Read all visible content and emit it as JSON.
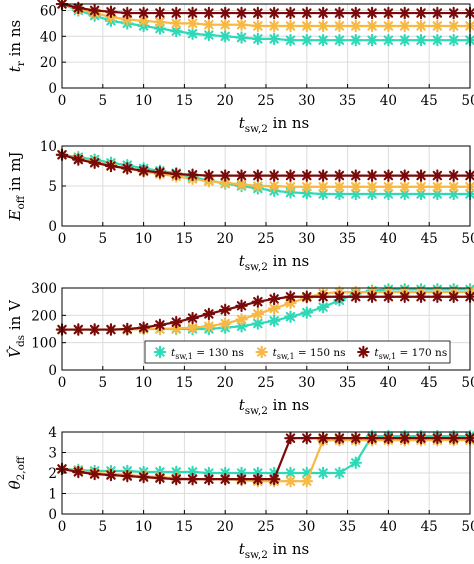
{
  "series_legend": [
    {
      "name": "t_sw,1 = 130 ns",
      "sym": "t",
      "sub": "sw,1",
      "rest": " = 130 ns",
      "color": "#2ed9b8"
    },
    {
      "name": "t_sw,1 = 150 ns",
      "sym": "t",
      "sub": "sw,1",
      "rest": " = 150 ns",
      "color": "#f7b844"
    },
    {
      "name": "t_sw,1 = 170 ns",
      "sym": "t",
      "sub": "sw,1",
      "rest": " = 170 ns",
      "color": "#7a0a0a"
    }
  ],
  "chart_data": [
    {
      "type": "line",
      "ylabel": {
        "main": "t",
        "sub": "r",
        "rest": " in ns"
      },
      "xlabel": {
        "main": "t",
        "sub": "sw,2",
        "rest": " in ns"
      },
      "xlim": [
        0,
        50
      ],
      "ylim": [
        0,
        65
      ],
      "xticks": [
        0,
        5,
        10,
        15,
        20,
        25,
        30,
        35,
        40,
        45,
        50
      ],
      "yticks": [
        0,
        20,
        40,
        60
      ],
      "grid": true,
      "x": [
        0,
        2,
        4,
        6,
        8,
        10,
        12,
        14,
        16,
        18,
        20,
        22,
        24,
        26,
        28,
        30,
        32,
        34,
        36,
        38,
        40,
        42,
        44,
        46,
        48,
        50
      ],
      "series": [
        {
          "name": "t_sw,1 = 130 ns",
          "values": [
            65,
            60,
            56,
            52,
            50,
            48,
            46,
            44,
            42,
            41,
            40,
            39,
            38,
            38,
            37,
            37,
            37,
            37,
            37,
            37,
            37,
            37,
            37,
            37,
            37,
            37
          ]
        },
        {
          "name": "t_sw,1 = 150 ns",
          "values": [
            65,
            61,
            58,
            55,
            53,
            52,
            51,
            50,
            50,
            49,
            49,
            49,
            48,
            48,
            48,
            48,
            48,
            48,
            48,
            48,
            48,
            48,
            48,
            48,
            48,
            48
          ]
        },
        {
          "name": "t_sw,1 = 170 ns",
          "values": [
            65,
            62,
            60,
            59,
            58,
            58,
            58,
            58,
            58,
            58,
            58,
            58,
            58,
            58,
            58,
            58,
            58,
            58,
            58,
            58,
            58,
            58,
            58,
            58,
            58,
            58
          ]
        }
      ]
    },
    {
      "type": "line",
      "ylabel": {
        "main": "E",
        "sub": "off",
        "rest": " in mJ"
      },
      "xlabel": {
        "main": "t",
        "sub": "sw,2",
        "rest": " in ns"
      },
      "xlim": [
        0,
        50
      ],
      "ylim": [
        0,
        10
      ],
      "xticks": [
        0,
        5,
        10,
        15,
        20,
        25,
        30,
        35,
        40,
        45,
        50
      ],
      "yticks": [
        0,
        5,
        10
      ],
      "grid": true,
      "x": [
        0,
        2,
        4,
        6,
        8,
        10,
        12,
        14,
        16,
        18,
        20,
        22,
        24,
        26,
        28,
        30,
        32,
        34,
        36,
        38,
        40,
        42,
        44,
        46,
        48,
        50
      ],
      "series": [
        {
          "name": "t_sw,1 = 130 ns",
          "values": [
            8.9,
            8.6,
            8.3,
            7.9,
            7.6,
            7.2,
            6.9,
            6.6,
            6.1,
            5.7,
            5.3,
            5.0,
            4.7,
            4.4,
            4.2,
            4.1,
            4.0,
            4.0,
            4.0,
            4.0,
            4.0,
            4.0,
            4.0,
            4.0,
            4.0,
            4.0
          ]
        },
        {
          "name": "t_sw,1 = 150 ns",
          "values": [
            8.9,
            8.4,
            8.0,
            7.6,
            7.2,
            6.8,
            6.5,
            6.2,
            5.9,
            5.6,
            5.4,
            5.2,
            5.0,
            5.0,
            4.9,
            4.9,
            4.9,
            4.9,
            4.9,
            4.9,
            4.9,
            4.9,
            4.9,
            4.9,
            4.9,
            4.9
          ]
        },
        {
          "name": "t_sw,1 = 170 ns",
          "values": [
            8.9,
            8.3,
            7.9,
            7.5,
            7.2,
            6.9,
            6.7,
            6.5,
            6.4,
            6.3,
            6.3,
            6.3,
            6.3,
            6.3,
            6.3,
            6.3,
            6.3,
            6.3,
            6.3,
            6.3,
            6.3,
            6.3,
            6.3,
            6.3,
            6.3,
            6.3
          ]
        }
      ]
    },
    {
      "type": "line",
      "ylabel": {
        "main": "V̂",
        "sub": "ds",
        "rest": " in V"
      },
      "xlabel": {
        "main": "t",
        "sub": "sw,2",
        "rest": " in ns"
      },
      "xlim": [
        0,
        50
      ],
      "ylim": [
        0,
        300
      ],
      "xticks": [
        0,
        5,
        10,
        15,
        20,
        25,
        30,
        35,
        40,
        45,
        50
      ],
      "yticks": [
        0,
        100,
        200,
        300
      ],
      "grid": true,
      "legend": "bottom-center",
      "x": [
        0,
        2,
        4,
        6,
        8,
        10,
        12,
        14,
        16,
        18,
        20,
        22,
        24,
        26,
        28,
        30,
        32,
        34,
        36,
        38,
        40,
        42,
        44,
        46,
        48,
        50
      ],
      "series": [
        {
          "name": "t_sw,1 = 130 ns",
          "values": [
            148,
            148,
            148,
            148,
            148,
            150,
            150,
            150,
            150,
            150,
            155,
            160,
            170,
            180,
            195,
            210,
            230,
            255,
            280,
            290,
            295,
            295,
            295,
            295,
            295,
            295
          ]
        },
        {
          "name": "t_sw,1 = 150 ns",
          "values": [
            148,
            148,
            148,
            148,
            148,
            150,
            150,
            152,
            155,
            160,
            170,
            185,
            205,
            225,
            245,
            265,
            280,
            285,
            285,
            285,
            285,
            285,
            285,
            285,
            285,
            285
          ]
        },
        {
          "name": "t_sw,1 = 170 ns",
          "values": [
            148,
            148,
            148,
            148,
            150,
            155,
            165,
            175,
            190,
            205,
            220,
            235,
            250,
            260,
            268,
            268,
            268,
            268,
            268,
            268,
            268,
            268,
            268,
            268,
            268,
            268
          ]
        }
      ]
    },
    {
      "type": "line",
      "ylabel": {
        "main": "θ",
        "sub": "2,off",
        "rest": ""
      },
      "xlabel": {
        "main": "t",
        "sub": "sw,2",
        "rest": " in ns"
      },
      "xlim": [
        0,
        50
      ],
      "ylim": [
        0,
        4
      ],
      "xticks": [
        0,
        5,
        10,
        15,
        20,
        25,
        30,
        35,
        40,
        45,
        50
      ],
      "yticks": [
        0,
        1,
        2,
        3,
        4
      ],
      "grid": true,
      "x": [
        0,
        2,
        4,
        6,
        8,
        10,
        12,
        14,
        16,
        18,
        20,
        22,
        24,
        26,
        28,
        30,
        32,
        34,
        36,
        38,
        40,
        42,
        44,
        46,
        48,
        50
      ],
      "series": [
        {
          "name": "t_sw,1 = 130 ns",
          "values": [
            2.2,
            2.15,
            2.1,
            2.1,
            2.1,
            2.05,
            2.05,
            2.05,
            2.05,
            2.0,
            2.0,
            2.0,
            2.0,
            2.0,
            2.0,
            2.0,
            2.0,
            2.0,
            2.5,
            3.8,
            3.8,
            3.8,
            3.8,
            3.8,
            3.8,
            3.8
          ]
        },
        {
          "name": "t_sw,1 = 150 ns",
          "values": [
            2.2,
            2.1,
            2.0,
            1.95,
            1.9,
            1.85,
            1.8,
            1.75,
            1.7,
            1.7,
            1.7,
            1.65,
            1.6,
            1.6,
            1.6,
            1.6,
            3.6,
            3.6,
            3.6,
            3.6,
            3.6,
            3.6,
            3.6,
            3.6,
            3.6,
            3.6
          ]
        },
        {
          "name": "t_sw,1 = 170 ns",
          "values": [
            2.2,
            2.05,
            1.95,
            1.9,
            1.85,
            1.8,
            1.75,
            1.7,
            1.7,
            1.7,
            1.7,
            1.7,
            1.7,
            1.7,
            3.7,
            3.7,
            3.7,
            3.7,
            3.7,
            3.7,
            3.7,
            3.7,
            3.7,
            3.7,
            3.7,
            3.7
          ]
        }
      ]
    }
  ]
}
